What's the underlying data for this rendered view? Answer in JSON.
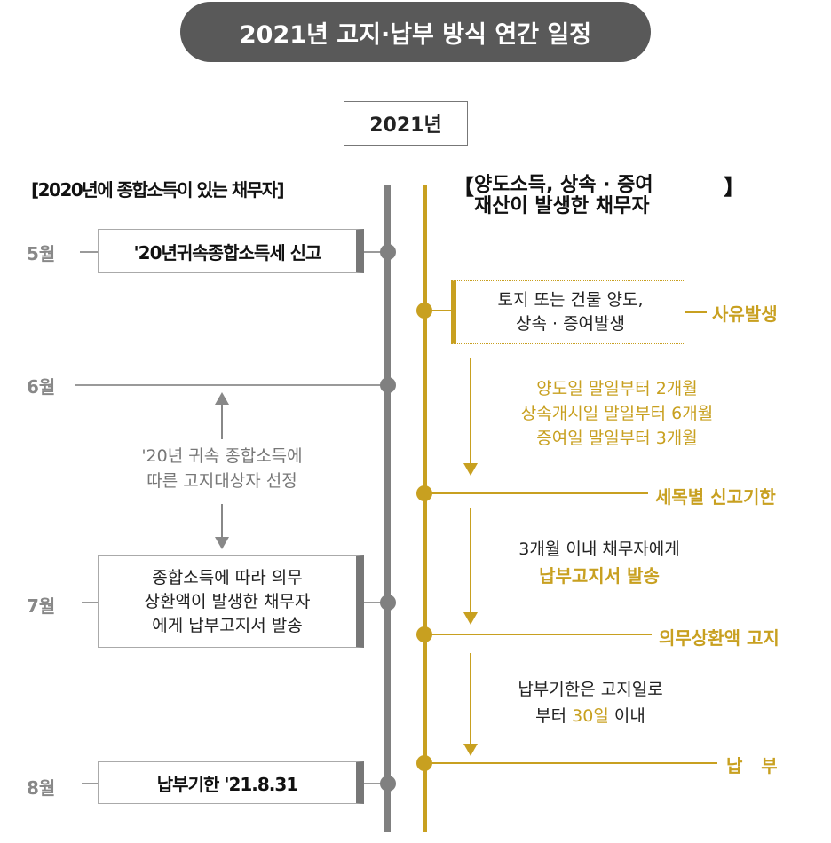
{
  "title": "2021년 고지·납부 방식 연간 일정",
  "year_label": "2021년",
  "left_header": "[2020년에 종합소득이 있는 채무자]",
  "right_header": {
    "open_bracket": "【",
    "line1": "양도소득, 상속 · 증여",
    "line2": "재산이 발생한 채무자",
    "close_bracket": "】"
  },
  "months": {
    "may": "5월",
    "june": "6월",
    "july": "7월",
    "august": "8월"
  },
  "left_boxes": {
    "may_report": "'20년귀속종합소득세 신고",
    "selection_line1": "'20년 귀속 종합소득에",
    "selection_line2": "따른 고지대상자 선정",
    "july_line1": "종합소득에 따라 의무",
    "july_line2": "상환액이 발생한 채무자",
    "july_line3": "에게 납부고지서 발송",
    "august_due": "납부기한 '21.8.31"
  },
  "right_boxes": {
    "event_line1": "토지 또는 건물 양도,",
    "event_line2": "상속  · 증여발생",
    "event_label": "사유발생",
    "deadline_line1": "양도일 말일부터 2개월",
    "deadline_line2": "상속개시일 말일부터 6개월",
    "deadline_line3": "증여일 말일부터 3개월",
    "report_label": "세목별 신고기한",
    "notice_line1": "3개월 이내 채무자에게",
    "notice_line2": "납부고지서 발송",
    "notice_label": "의무상환액 고지",
    "pay_line1": "납부기한은 고지일로",
    "pay_line2_prefix": "부터",
    "pay_line2_gold": "30일",
    "pay_line2_suffix": "이내",
    "pay_label": "납   부"
  }
}
